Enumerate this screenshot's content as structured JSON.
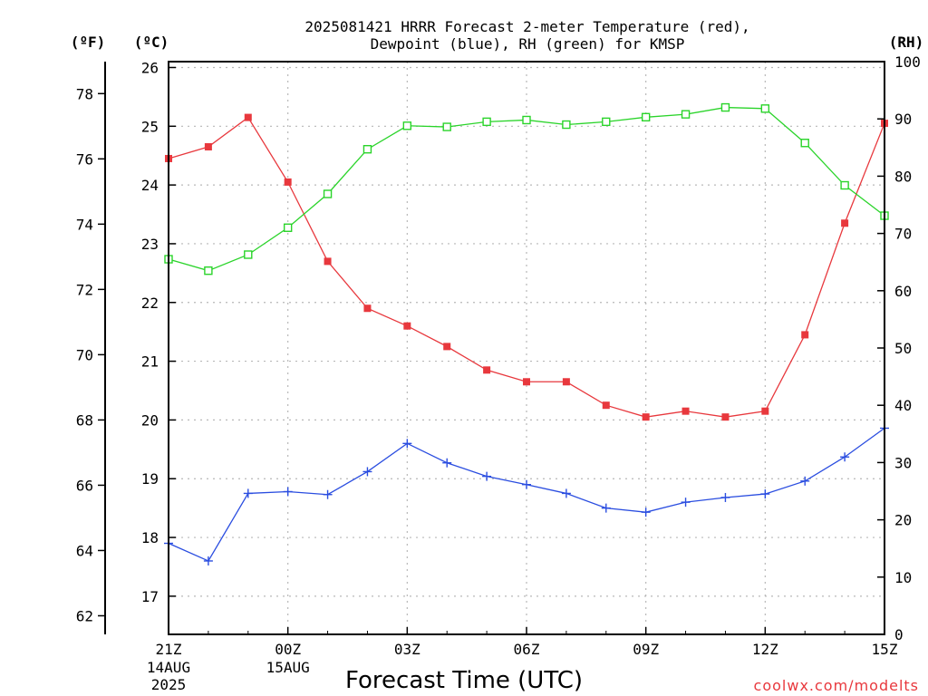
{
  "chart_data": {
    "type": "line",
    "title": [
      "2025081421 HRRR Forecast 2-meter Temperature (red),",
      "Dewpoint (blue), RH (green) for KMSP"
    ],
    "xlabel": "Forecast Time (UTC)",
    "x_ticks": [
      {
        "label": "21Z",
        "sub": [
          "14AUG",
          "2025"
        ],
        "idx": 0
      },
      {
        "label": "00Z",
        "sub": [
          "15AUG"
        ],
        "idx": 3
      },
      {
        "label": "03Z",
        "sub": [],
        "idx": 6
      },
      {
        "label": "06Z",
        "sub": [],
        "idx": 9
      },
      {
        "label": "09Z",
        "sub": [],
        "idx": 12
      },
      {
        "label": "12Z",
        "sub": [],
        "idx": 15
      },
      {
        "label": "15Z",
        "sub": [],
        "idx": 18
      }
    ],
    "x": [
      "21Z",
      "22Z",
      "23Z",
      "00Z",
      "01Z",
      "02Z",
      "03Z",
      "04Z",
      "05Z",
      "06Z",
      "07Z",
      "08Z",
      "09Z",
      "10Z",
      "11Z",
      "12Z",
      "13Z",
      "14Z",
      "15Z"
    ],
    "celsius_axis": {
      "unit": "(ºC)",
      "range": [
        16.35,
        26.1
      ],
      "ticks": [
        17,
        18,
        19,
        20,
        21,
        22,
        23,
        24,
        25,
        26
      ]
    },
    "fahrenheit_axis": {
      "unit": "(ºF)",
      "ticks": [
        62,
        64,
        66,
        68,
        70,
        72,
        74,
        76,
        78
      ]
    },
    "rh_axis": {
      "unit": "(RH)",
      "range": [
        0,
        100
      ],
      "ticks": [
        0,
        10,
        20,
        30,
        40,
        50,
        60,
        70,
        80,
        90,
        100
      ]
    },
    "series": [
      {
        "color": "#e8383d",
        "marker": "filled-square",
        "axis": "celsius",
        "values": [
          24.45,
          24.65,
          25.15,
          24.05,
          22.7,
          21.9,
          21.6,
          21.25,
          20.85,
          20.65,
          20.65,
          20.25,
          20.05,
          20.15,
          20.05,
          20.15,
          21.45,
          23.35,
          25.05
        ]
      },
      {
        "color": "#2a4de0",
        "marker": "plus",
        "axis": "celsius",
        "values": [
          17.9,
          17.6,
          18.75,
          18.78,
          18.73,
          19.12,
          19.6,
          19.27,
          19.04,
          18.9,
          18.75,
          18.5,
          18.43,
          18.6,
          18.68,
          18.74,
          18.96,
          19.37,
          19.86
        ]
      },
      {
        "color": "#2ad42a",
        "marker": "open-square",
        "axis": "rh",
        "values": [
          65.5,
          63.5,
          66.3,
          71.0,
          76.9,
          84.7,
          88.8,
          88.6,
          89.5,
          89.8,
          89.0,
          89.5,
          90.3,
          90.8,
          92.0,
          91.8,
          85.8,
          78.4,
          73.1
        ]
      }
    ],
    "grid": true,
    "credit": "coolwx.com/modelts"
  }
}
